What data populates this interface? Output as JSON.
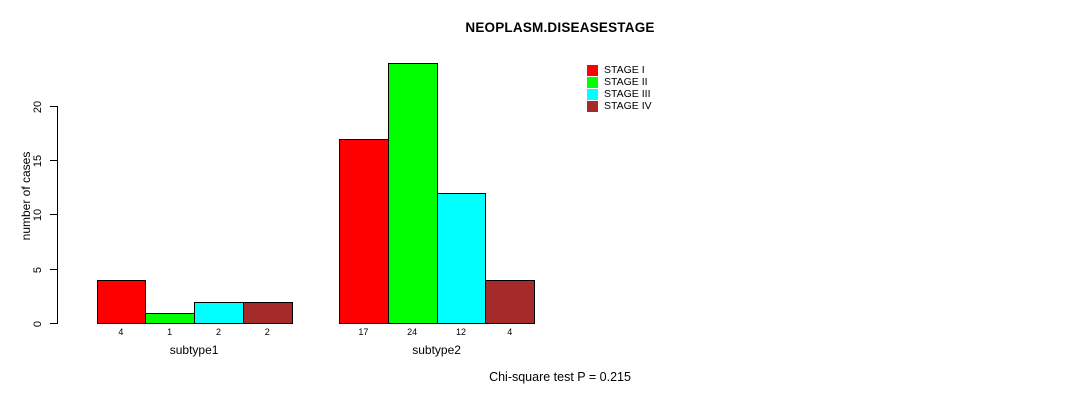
{
  "chart_data": {
    "type": "bar",
    "grouped": true,
    "title": "NEOPLASM.DISEASESTAGE",
    "xlabel": "",
    "ylabel": "number of cases",
    "categories": [
      "subtype1",
      "subtype2"
    ],
    "series": [
      {
        "name": "STAGE I",
        "color": "#ff0000",
        "values": [
          4,
          17
        ]
      },
      {
        "name": "STAGE II",
        "color": "#00ff00",
        "values": [
          1,
          24
        ]
      },
      {
        "name": "STAGE III",
        "color": "#00ffff",
        "values": [
          2,
          12
        ]
      },
      {
        "name": "STAGE IV",
        "color": "#a52a2a",
        "values": [
          2,
          4
        ]
      }
    ],
    "yticks": [
      0,
      5,
      10,
      15,
      20
    ],
    "ylim": [
      0,
      24
    ],
    "grid": false,
    "bar_value_labels": true,
    "bar_border_color": "#000000",
    "legend_position": "top-right-inside",
    "annotation": "Chi-square test P = 0.215"
  }
}
